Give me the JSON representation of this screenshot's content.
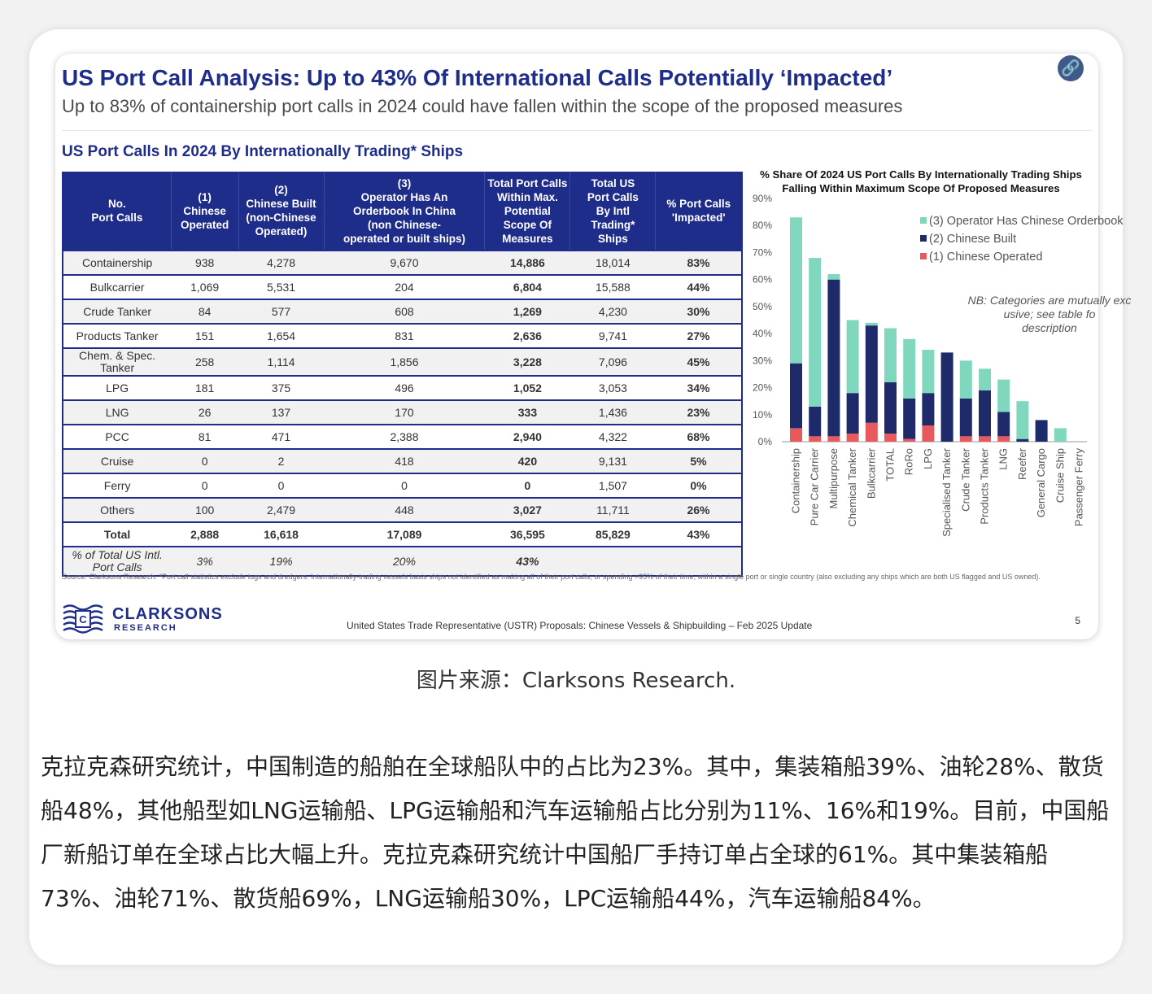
{
  "slide": {
    "title": "US Port Call Analysis: Up to 43% Of International Calls Potentially ‘Impacted’",
    "subtitle": "Up to 83% of containership port calls in 2024 could have fallen within the scope of the proposed measures",
    "table_heading": "US Port Calls In 2024 By Internationally Trading* Ships",
    "source_note": "Source: Clarksons Research. *Port call statistics exclude tugs and dredgers. Internationally-trading vessels basis ships not identified as making all of their port calls, or spending >95% of their time, within a single port or single country (also excluding any ships which are both US flagged and US owned).",
    "logo_name": "CLARKSONS",
    "logo_sub": "RESEARCH",
    "footer": "United States Trade Representative (USTR) Proposals: Chinese Vessels & Shipbuilding – Feb 2025 Update",
    "page": "5",
    "link_icon": "link-icon"
  },
  "table": {
    "headers": [
      "No.\nPort Calls",
      "(1)\nChinese\nOperated",
      "(2)\nChinese Built\n(non-Chinese\nOperated)",
      "(3)\nOperator Has An\nOrderbook In China\n(non Chinese-\noperated or built ships)",
      "Total Port Calls\nWithin Max.\nPotential\nScope Of\nMeasures",
      "Total US\nPort Calls\nBy Intl\nTrading*\nShips",
      "% Port Calls\n'Impacted'"
    ],
    "rows": [
      [
        "Containership",
        "938",
        "4,278",
        "9,670",
        "14,886",
        "18,014",
        "83%"
      ],
      [
        "Bulkcarrier",
        "1,069",
        "5,531",
        "204",
        "6,804",
        "15,588",
        "44%"
      ],
      [
        "Crude Tanker",
        "84",
        "577",
        "608",
        "1,269",
        "4,230",
        "30%"
      ],
      [
        "Products Tanker",
        "151",
        "1,654",
        "831",
        "2,636",
        "9,741",
        "27%"
      ],
      [
        "Chem. & Spec. Tanker",
        "258",
        "1,114",
        "1,856",
        "3,228",
        "7,096",
        "45%"
      ],
      [
        "LPG",
        "181",
        "375",
        "496",
        "1,052",
        "3,053",
        "34%"
      ],
      [
        "LNG",
        "26",
        "137",
        "170",
        "333",
        "1,436",
        "23%"
      ],
      [
        "PCC",
        "81",
        "471",
        "2,388",
        "2,940",
        "4,322",
        "68%"
      ],
      [
        "Cruise",
        "0",
        "2",
        "418",
        "420",
        "9,131",
        "5%"
      ],
      [
        "Ferry",
        "0",
        "0",
        "0",
        "0",
        "1,507",
        "0%"
      ],
      [
        "Others",
        "100",
        "2,479",
        "448",
        "3,027",
        "11,711",
        "26%"
      ]
    ],
    "total_row": [
      "Total",
      "2,888",
      "16,618",
      "17,089",
      "36,595",
      "85,829",
      "43%"
    ],
    "pct_row": [
      "% of Total US Intl. Port Calls",
      "3%",
      "19%",
      "20%",
      "43%",
      "",
      ""
    ]
  },
  "chart_data": {
    "type": "bar",
    "stacked": true,
    "title": "% Share Of 2024 US Port Calls By Internationally Trading Ships Falling Within Maximum Scope Of Proposed Measures",
    "categories": [
      "Containership",
      "Pure Car Carrier",
      "Multipurpose",
      "Chemical Tanker",
      "Bulkcarrier",
      "TOTAL",
      "RoRo",
      "LPG",
      "Specialised Tanker",
      "Crude Tanker",
      "Products Tanker",
      "LNG",
      "Reefer",
      "General Cargo",
      "Cruise Ship",
      "Passenger Ferry"
    ],
    "series": [
      {
        "name": "(1) Chinese Operated",
        "color": "#e8595d",
        "values": [
          5,
          2,
          2,
          3,
          7,
          3,
          1,
          6,
          0,
          2,
          2,
          2,
          0,
          0,
          0,
          0
        ]
      },
      {
        "name": "(2) Chinese Built",
        "color": "#1f2a6b",
        "values": [
          24,
          11,
          58,
          15,
          36,
          19,
          15,
          12,
          33,
          14,
          17,
          9,
          1,
          8,
          0,
          0
        ]
      },
      {
        "name": "(3) Operator Has Chinese Orderbook",
        "color": "#7fd8bd",
        "values": [
          54,
          55,
          2,
          27,
          1,
          20,
          22,
          16,
          0,
          14,
          8,
          12,
          14,
          0,
          5,
          0
        ]
      }
    ],
    "y_ticks": [
      "0%",
      "10%",
      "20%",
      "30%",
      "40%",
      "50%",
      "60%",
      "70%",
      "80%",
      "90%"
    ],
    "ylim": [
      0,
      90
    ],
    "legend_position": "top-right",
    "annotation": "NB: Categories are mutually exclusive; see table for description",
    "grid": false
  },
  "caption": "图片来源：Clarksons Research.",
  "body_text": "克拉克森研究统计，中国制造的船舶在全球船队中的占比为23%。其中，集装箱船39%、油轮28%、散货船48%，其他船型如LNG运输船、LPG运输船和汽车运输船占比分别为11%、16%和19%。目前，中国船厂新船订单在全球占比大幅上升。克拉克森研究统计中国船厂手持订单占全球的61%。其中集装箱船73%、油轮71%、散货船69%，LNG运输船30%，LPC运输船44%，汽车运输船84%。"
}
